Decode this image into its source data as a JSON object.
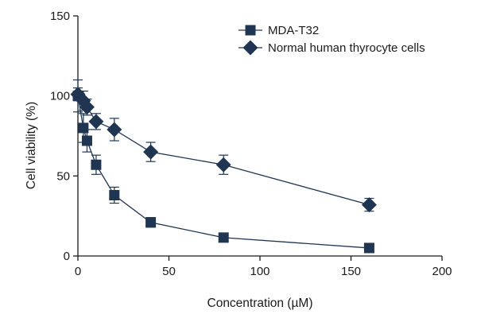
{
  "chart_data": {
    "type": "line",
    "title": "",
    "xlabel": "Concentration (µM)",
    "ylabel": "Cell viability (%)",
    "xlim": [
      0,
      200
    ],
    "ylim": [
      0,
      150
    ],
    "xticks": [
      0,
      50,
      100,
      150,
      200
    ],
    "yticks": [
      0,
      50,
      100,
      150
    ],
    "legend_position": "top-right",
    "grid": false,
    "series": [
      {
        "name": "MDA-T32",
        "marker": "square",
        "color": "#1f3552",
        "x": [
          0,
          3,
          5,
          10,
          20,
          40,
          80,
          160
        ],
        "values": [
          100,
          80,
          72,
          57,
          38,
          21,
          11.5,
          5
        ],
        "errors": [
          10,
          9,
          7,
          6,
          5,
          3,
          0,
          0
        ]
      },
      {
        "name": "Normal human thyrocyte cells",
        "marker": "diamond",
        "color": "#1f3552",
        "x": [
          0,
          3,
          5,
          10,
          20,
          40,
          80,
          160
        ],
        "values": [
          101,
          97,
          93,
          84,
          79,
          65,
          57,
          32
        ],
        "errors": [
          4,
          6,
          5,
          5,
          7,
          6,
          6,
          4
        ]
      }
    ]
  }
}
